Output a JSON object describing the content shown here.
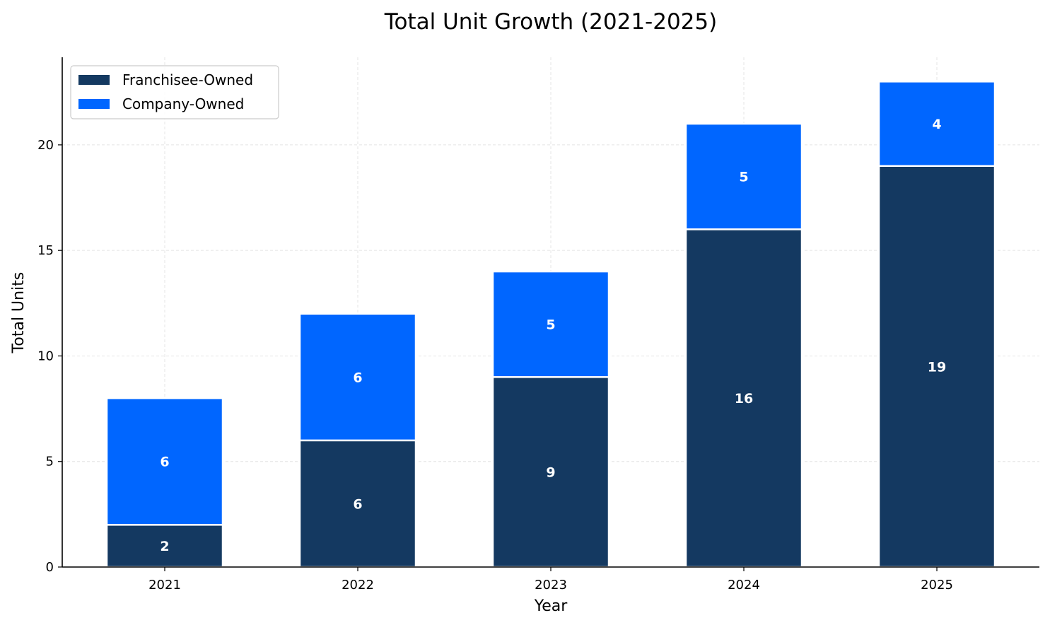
{
  "chart_data": {
    "type": "bar",
    "stacked": true,
    "title": "Total Unit Growth (2021-2025)",
    "xlabel": "Year",
    "ylabel": "Total Units",
    "categories": [
      "2021",
      "2022",
      "2023",
      "2024",
      "2025"
    ],
    "series": [
      {
        "name": "Franchisee-Owned",
        "values": [
          2,
          6,
          9,
          16,
          19
        ],
        "color": "#143961"
      },
      {
        "name": "Company-Owned",
        "values": [
          6,
          6,
          5,
          5,
          4
        ],
        "color": "#0066ff"
      }
    ],
    "ylim": [
      0,
      24.15
    ],
    "yticks": [
      "0",
      "5",
      "10",
      "15",
      "20"
    ],
    "grid": true,
    "legend_position": "top-left"
  }
}
